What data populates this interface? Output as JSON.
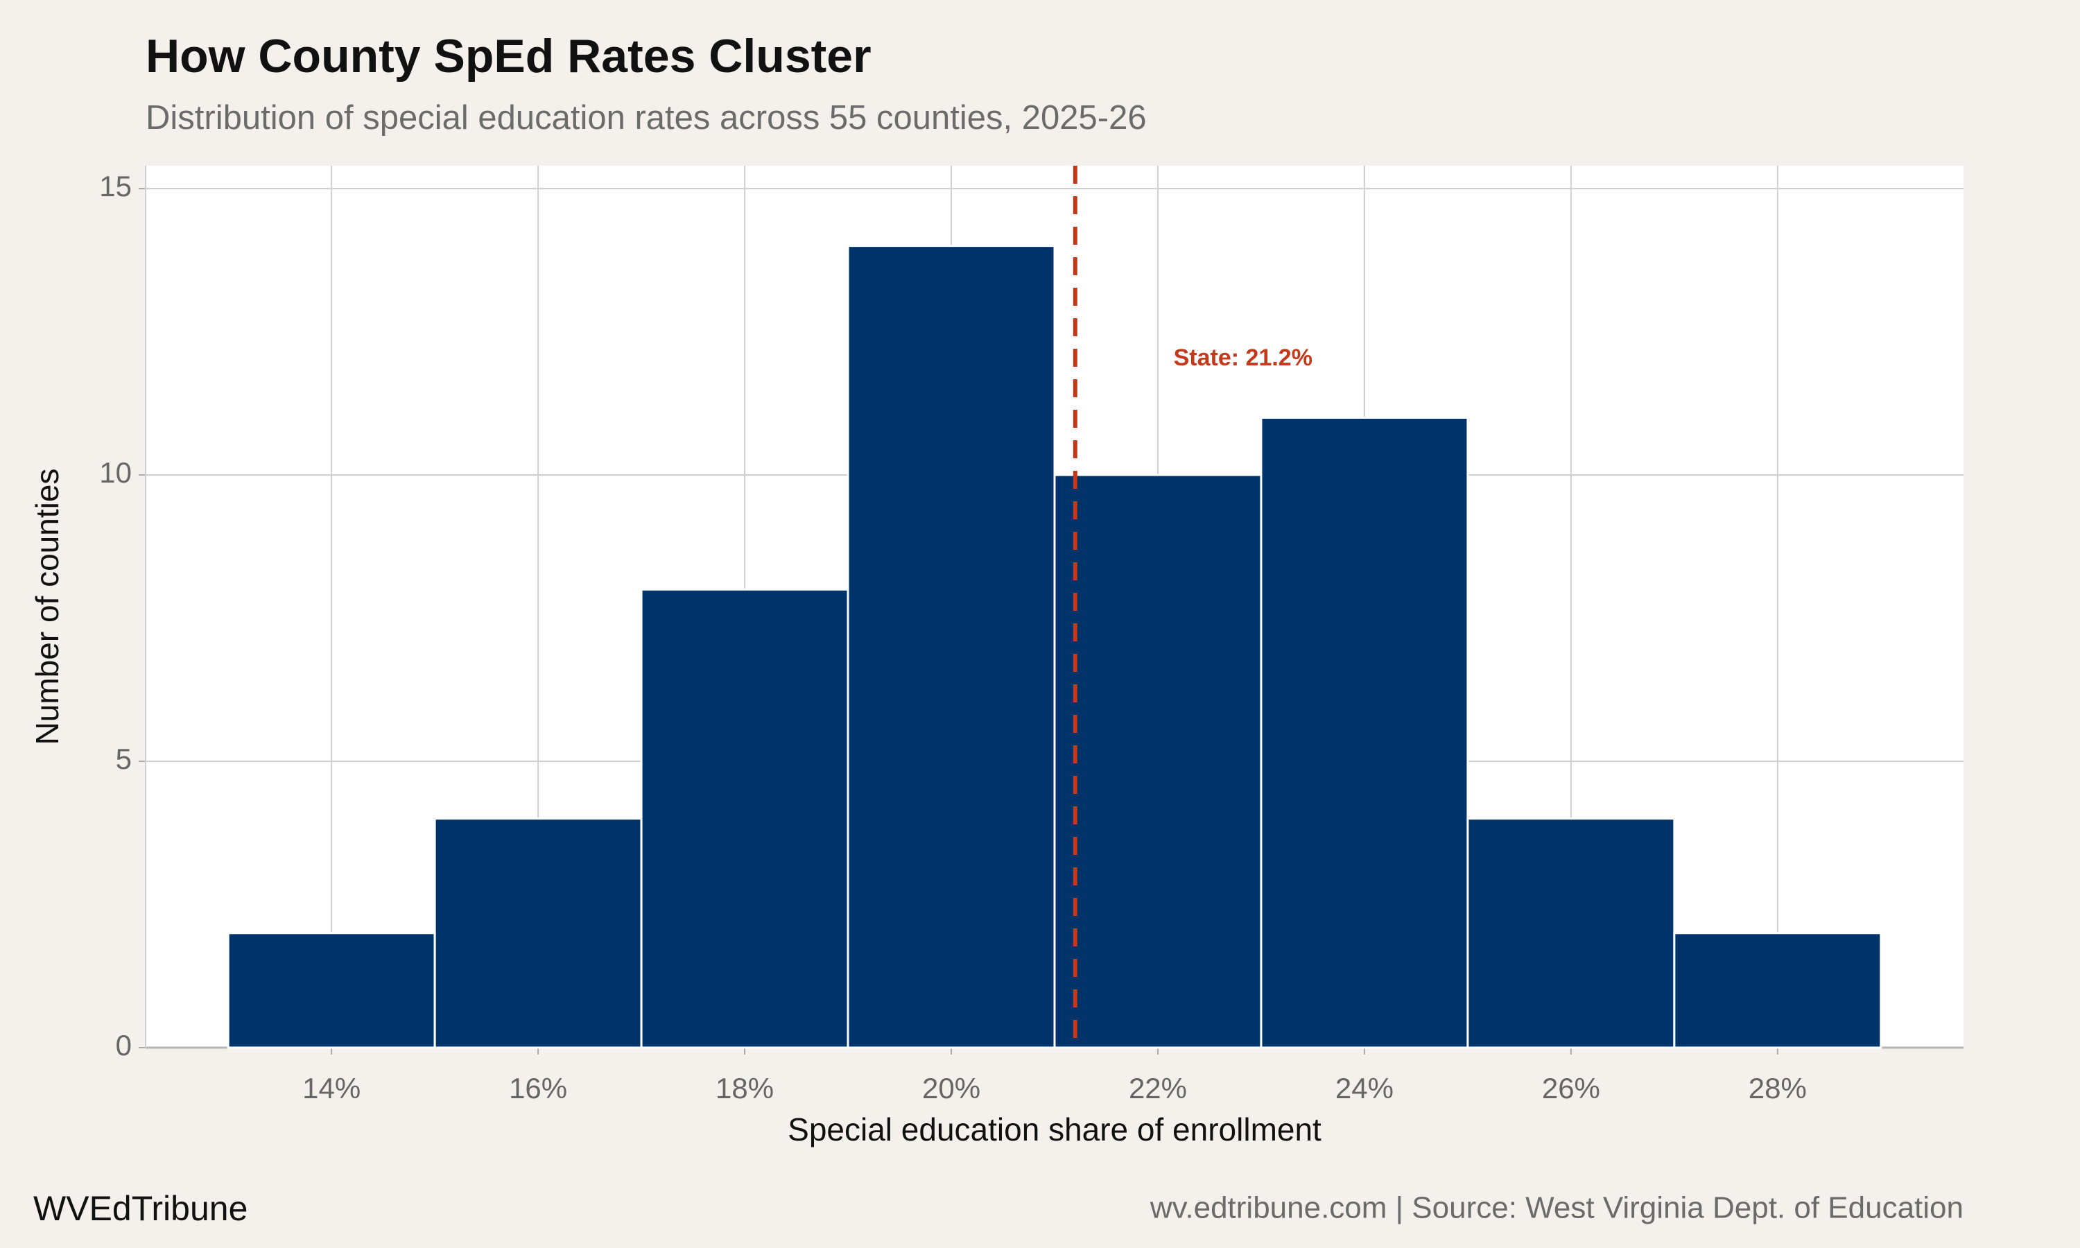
{
  "chart_data": {
    "type": "histogram",
    "title": "How County SpEd Rates Cluster",
    "subtitle": "Distribution of special education rates across 55 counties, 2025-26",
    "x_label": "Special education share of enrollment",
    "y_label": "Number of counties",
    "bins": [
      13,
      15,
      17,
      19,
      21,
      23,
      25,
      27,
      29
    ],
    "values": [
      2,
      4,
      8,
      14,
      10,
      11,
      4,
      2
    ],
    "color": "#00336a",
    "xlim": [
      12.2,
      29.8
    ],
    "ylim": [
      0,
      15.4
    ],
    "xticks": [
      {
        "value": 14,
        "label": "14%"
      },
      {
        "value": 16,
        "label": "16%"
      },
      {
        "value": 18,
        "label": "18%"
      },
      {
        "value": 20,
        "label": "20%"
      },
      {
        "value": 22,
        "label": "22%"
      },
      {
        "value": 24,
        "label": "24%"
      },
      {
        "value": 26,
        "label": "26%"
      },
      {
        "value": 28,
        "label": "28%"
      }
    ],
    "yticks": [
      0,
      5,
      10,
      15
    ],
    "grid": true,
    "reference_line": {
      "value": 21.2,
      "label": "State: 21.2%",
      "color": "#c2391b"
    },
    "credit": "WVEdTribune",
    "source": "wv.edtribune.com | Source: West Virginia Dept. of Education"
  }
}
